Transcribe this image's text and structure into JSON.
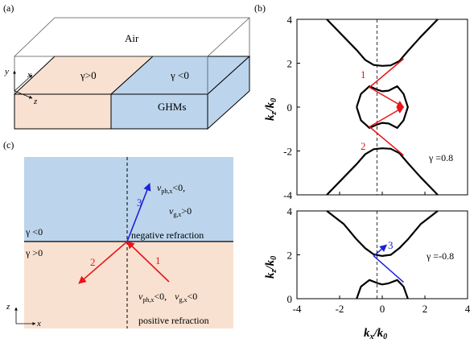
{
  "panels": {
    "a": {
      "label": "(a)",
      "air": "Air",
      "region_left": "γ>0",
      "region_right": "γ <0",
      "material": "GHMs",
      "axis_y": "y",
      "axis_x": "x",
      "axis_z": "z",
      "colors": {
        "left": "#f9e1d1",
        "right": "#bcd5ec"
      }
    },
    "b": {
      "label": "(b)",
      "ylabel": "k",
      "ylabel_sub1": "z",
      "ylabel_div": "/k",
      "ylabel_sub2": "0",
      "xlabel": "k",
      "xlabel_sub1": "x",
      "xlabel_div": "/k",
      "xlabel_sub2": "0",
      "top": {
        "gamma": "γ =0.8",
        "ray1": "1",
        "ray2": "2",
        "yticks": [
          "4",
          "2",
          "0",
          "-2",
          "-4"
        ]
      },
      "bottom": {
        "gamma": "γ =-0.8",
        "ray3": "3",
        "yticks": [
          "4",
          "2",
          "0"
        ]
      },
      "xticks": [
        "-4",
        "-2",
        "0",
        "2",
        "4"
      ],
      "ray_colors": {
        "positive": "#e8141a",
        "negative": "#1c22d8"
      }
    },
    "c": {
      "label": "(c)",
      "gamma_top": "γ <0",
      "gamma_bottom": "γ >0",
      "ray1": "1",
      "ray2": "2",
      "ray3": "3",
      "ann_top_line1_v": "v",
      "ann_top_line1_sub": "ph,x",
      "ann_top_line1_rest": "<0,",
      "ann_top_line2_v": "v",
      "ann_top_line2_sub": "g,x",
      "ann_top_line2_rest": ">0",
      "negative": "negative refraction",
      "ann_bottom_v1": "v",
      "ann_bottom_sub1": "ph,x",
      "ann_bottom_rest1": "<0,  ",
      "ann_bottom_v2": "v",
      "ann_bottom_sub2": "g,x",
      "ann_bottom_rest2": "<0",
      "positive": "positive refraction",
      "axis_z": "z",
      "axis_x": "x",
      "colors": {
        "top": "#bcd5ec",
        "bottom": "#f9e1d1"
      }
    }
  },
  "chart_data": [
    {
      "type": "line",
      "panel": "b-top",
      "xlim": [
        -4,
        4
      ],
      "ylim": [
        -4,
        4
      ],
      "xlabel": "k_x/k_0",
      "ylabel": "k_z/k_0",
      "annotation": "γ =0.8",
      "series": [
        {
          "x": [
            -2.6,
            -1.8,
            -1.2,
            -0.8,
            -0.4,
            0.0,
            0.4,
            0.8,
            1.2,
            1.8,
            2.6
          ],
          "y": [
            4.0,
            3.2,
            2.6,
            2.15,
            1.92,
            1.88,
            1.9,
            2.1,
            2.55,
            3.2,
            4.0
          ]
        },
        {
          "x": [
            -2.6,
            -1.8,
            -1.2,
            -0.8,
            -0.4,
            0.0,
            0.4,
            0.8,
            1.2,
            1.8,
            2.6
          ],
          "y": [
            -4.0,
            -3.2,
            -2.6,
            -2.15,
            -1.92,
            -1.88,
            -1.9,
            -2.1,
            -2.55,
            -3.2,
            -4.0
          ]
        },
        {
          "x": [
            -1.2,
            -1.0,
            -0.6,
            -0.2,
            0.0,
            0.3,
            0.7,
            1.0,
            1.2,
            1.0,
            0.7,
            0.3,
            0.0,
            -0.2,
            -0.6,
            -1.0,
            -1.2
          ],
          "y": [
            0.0,
            0.6,
            0.95,
            0.78,
            0.72,
            0.75,
            0.95,
            0.6,
            0.0,
            -0.6,
            -0.95,
            -0.75,
            -0.72,
            -0.78,
            -0.95,
            -0.6,
            0.0
          ]
        },
        {
          "x": [
            1.0,
            -0.6,
            1.0
          ],
          "y": [
            -2.2,
            -0.9,
            0.0
          ]
        },
        {
          "x": [
            1.0,
            -0.6,
            1.0
          ],
          "y": [
            2.2,
            0.9,
            0.0
          ]
        }
      ]
    },
    {
      "type": "line",
      "panel": "b-bottom",
      "xlim": [
        -4,
        4
      ],
      "ylim": [
        0,
        4
      ],
      "xlabel": "k_x/k_0",
      "ylabel": "k_z/k_0",
      "annotation": "γ =-0.8",
      "series": [
        {
          "x": [
            -2.6,
            -1.8,
            -1.2,
            -0.8,
            -0.4,
            0.0,
            0.4,
            0.8,
            1.2,
            1.8,
            2.6
          ],
          "y": [
            4.0,
            3.4,
            2.7,
            2.3,
            2.02,
            1.95,
            2.0,
            2.3,
            2.7,
            3.4,
            4.0
          ]
        },
        {
          "x": [
            -1.2,
            -1.0,
            -0.6,
            -0.2,
            0.0,
            0.3,
            0.7,
            1.0,
            1.2
          ],
          "y": [
            0.0,
            0.55,
            0.85,
            0.7,
            0.65,
            0.7,
            0.85,
            0.55,
            0.0
          ]
        },
        {
          "x": [
            1.0,
            -0.4,
            0.2
          ],
          "y": [
            0.75,
            1.95,
            2.45
          ]
        }
      ]
    }
  ]
}
